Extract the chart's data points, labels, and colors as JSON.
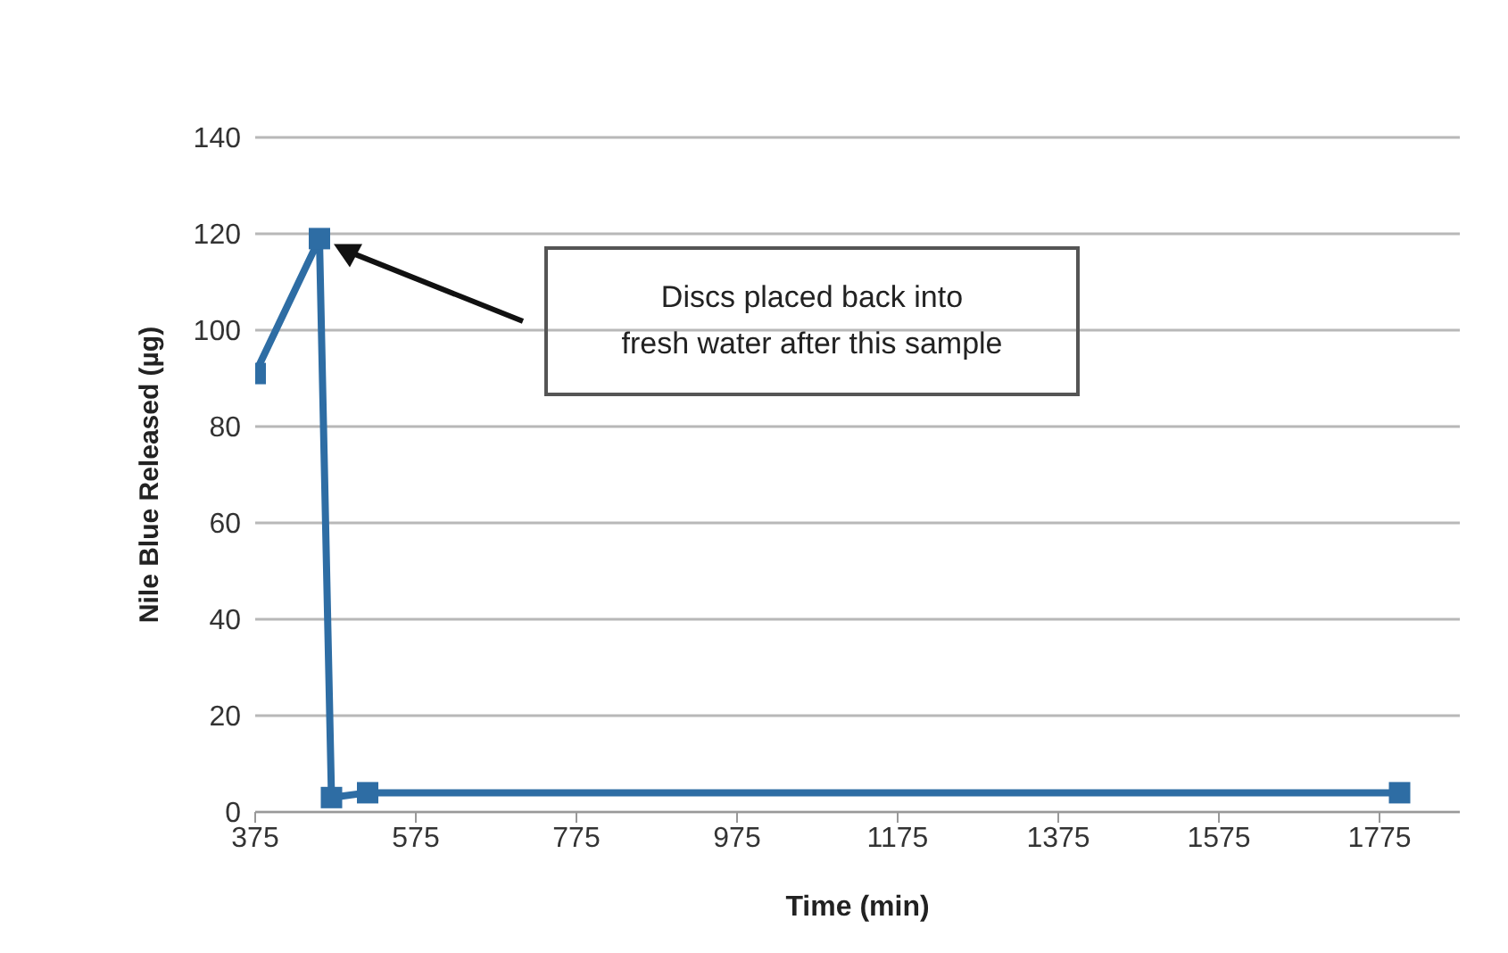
{
  "chart_data": {
    "type": "line",
    "xlabel": "Time (min)",
    "ylabel": "Nile Blue Released (µg)",
    "x": [
      375,
      455,
      470,
      515,
      1800
    ],
    "series": [
      {
        "color": "#2e6da4",
        "values": [
          91,
          119,
          3,
          4,
          4
        ]
      }
    ],
    "marker": "square",
    "line_style": "solid",
    "xlim": [
      375,
      1875
    ],
    "xticks": [
      375,
      575,
      775,
      975,
      1175,
      1375,
      1575,
      1775
    ],
    "ylim": [
      0,
      140
    ],
    "yticks": [
      0,
      20,
      40,
      60,
      80,
      100,
      120,
      140
    ],
    "grid": "y",
    "annotations": [
      "Discs placed back into\nfresh water after this sample"
    ]
  }
}
